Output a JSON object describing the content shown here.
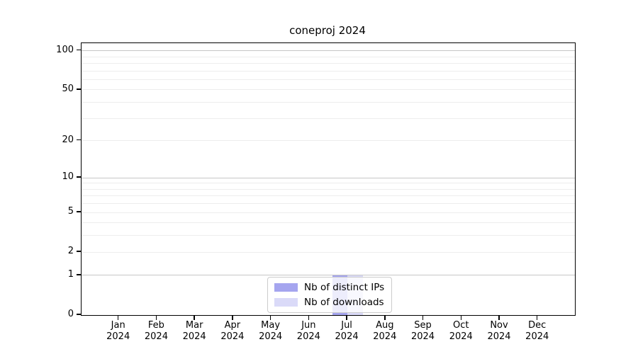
{
  "chart_data": {
    "type": "bar",
    "title": "coneproj 2024",
    "categories": [
      "Jan",
      "Feb",
      "Mar",
      "Apr",
      "May",
      "Jun",
      "Jul",
      "Aug",
      "Sep",
      "Oct",
      "Nov",
      "Dec"
    ],
    "x_year": "2024",
    "series": [
      {
        "name": "Nb of distinct IPs",
        "color": "#a5a5ef",
        "values": [
          0,
          0,
          0,
          0,
          0,
          0,
          1,
          0,
          0,
          0,
          0,
          0
        ]
      },
      {
        "name": "Nb of downloads",
        "color": "#dadaf8",
        "values": [
          0,
          0,
          0,
          0,
          0,
          0,
          1,
          0,
          0,
          0,
          0,
          0
        ]
      }
    ],
    "y_scale": "log10(1+v)",
    "y_ticks": [
      0,
      1,
      2,
      5,
      10,
      20,
      50,
      100
    ],
    "y_minor_grid": [
      2,
      3,
      4,
      5,
      6,
      7,
      8,
      9,
      20,
      30,
      40,
      50,
      60,
      70,
      80,
      90
    ],
    "y_major_grid": [
      1,
      10,
      100
    ],
    "ylim": [
      0,
      115
    ],
    "grid": "horizontal",
    "legend_position": "bottom-center"
  },
  "colors": {
    "background": "#ffffff",
    "axis": "#000000",
    "text": "#000000",
    "grid_major": "#c6c6c6",
    "grid_minor": "#ededed",
    "legend_border": "#cccccc",
    "legend_background": "rgba(255,255,255,0.8)"
  }
}
